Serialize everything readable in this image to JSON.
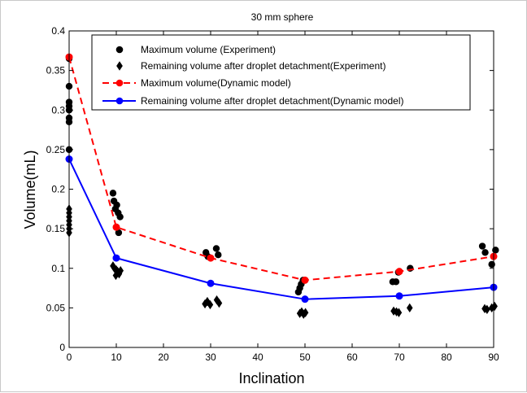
{
  "chart_data": {
    "type": "line",
    "title": "30 mm sphere",
    "xlabel": "Inclination",
    "ylabel": "Volume(mL)",
    "xlim": [
      0,
      90
    ],
    "ylim": [
      0,
      0.4
    ],
    "xticks": [
      0,
      10,
      20,
      30,
      40,
      50,
      60,
      70,
      80,
      90
    ],
    "yticks": [
      0,
      0.05,
      0.1,
      0.15,
      0.2,
      0.25,
      0.3,
      0.35,
      0.4
    ],
    "xtick_labels": [
      "0",
      "10",
      "20",
      "30",
      "40",
      "50",
      "60",
      "70",
      "80",
      "90"
    ],
    "ytick_labels": [
      "0",
      "0.05",
      "0.1",
      "0.15",
      "0.2",
      "0.25",
      "0.3",
      "0.35",
      "0.4"
    ],
    "grid": false,
    "legend_position": "top-right",
    "series": [
      {
        "name": "Maximum volume (Experiment)",
        "kind": "scatter",
        "marker": "circle",
        "color": "#000000",
        "points": [
          [
            0,
            0.365
          ],
          [
            0,
            0.33
          ],
          [
            0,
            0.31
          ],
          [
            0,
            0.305
          ],
          [
            0,
            0.3
          ],
          [
            0,
            0.29
          ],
          [
            0,
            0.285
          ],
          [
            0,
            0.25
          ],
          [
            9.3,
            0.195
          ],
          [
            9.5,
            0.185
          ],
          [
            9.8,
            0.175
          ],
          [
            10.1,
            0.18
          ],
          [
            10.4,
            0.17
          ],
          [
            10.8,
            0.165
          ],
          [
            10.5,
            0.145
          ],
          [
            29,
            0.12
          ],
          [
            29.4,
            0.115
          ],
          [
            31.2,
            0.125
          ],
          [
            31.6,
            0.117
          ],
          [
            48.6,
            0.07
          ],
          [
            48.9,
            0.075
          ],
          [
            49.2,
            0.08
          ],
          [
            49.6,
            0.085
          ],
          [
            68.6,
            0.083
          ],
          [
            69.3,
            0.083
          ],
          [
            69.8,
            0.095
          ],
          [
            72.3,
            0.1
          ],
          [
            87.6,
            0.128
          ],
          [
            88.2,
            0.12
          ],
          [
            89.6,
            0.105
          ],
          [
            90.4,
            0.123
          ]
        ]
      },
      {
        "name": "Remaining volume after droplet detachment(Experiment)",
        "kind": "scatter",
        "marker": "diamond",
        "color": "#000000",
        "points": [
          [
            0,
            0.175
          ],
          [
            0,
            0.17
          ],
          [
            0,
            0.165
          ],
          [
            0,
            0.16
          ],
          [
            0,
            0.155
          ],
          [
            0,
            0.15
          ],
          [
            0,
            0.145
          ],
          [
            9.3,
            0.103
          ],
          [
            9.6,
            0.1
          ],
          [
            10,
            0.098
          ],
          [
            10.3,
            0.096
          ],
          [
            10.6,
            0.093
          ],
          [
            9.9,
            0.091
          ],
          [
            10.9,
            0.097
          ],
          [
            28.8,
            0.055
          ],
          [
            29.3,
            0.058
          ],
          [
            29.9,
            0.054
          ],
          [
            31.3,
            0.06
          ],
          [
            31.8,
            0.056
          ],
          [
            48.9,
            0.043
          ],
          [
            49.3,
            0.045
          ],
          [
            49.7,
            0.042
          ],
          [
            50.1,
            0.044
          ],
          [
            68.8,
            0.046
          ],
          [
            69.4,
            0.045
          ],
          [
            69.9,
            0.044
          ],
          [
            72.2,
            0.05
          ],
          [
            88.1,
            0.049
          ],
          [
            88.6,
            0.048
          ],
          [
            89.6,
            0.05
          ],
          [
            90.2,
            0.052
          ]
        ]
      },
      {
        "name": "Maximum volume(Dynamic model)",
        "kind": "line",
        "marker": "circle",
        "style": "dashed",
        "color": "#ff0000",
        "x": [
          0,
          10,
          30,
          50,
          70,
          90
        ],
        "y": [
          0.367,
          0.152,
          0.113,
          0.085,
          0.096,
          0.115
        ]
      },
      {
        "name": "Remaining volume after droplet detachment(Dynamic model)",
        "kind": "line",
        "marker": "circle",
        "style": "solid",
        "color": "#0000ff",
        "x": [
          0,
          10,
          30,
          50,
          70,
          90
        ],
        "y": [
          0.238,
          0.113,
          0.081,
          0.061,
          0.065,
          0.076
        ]
      }
    ]
  }
}
